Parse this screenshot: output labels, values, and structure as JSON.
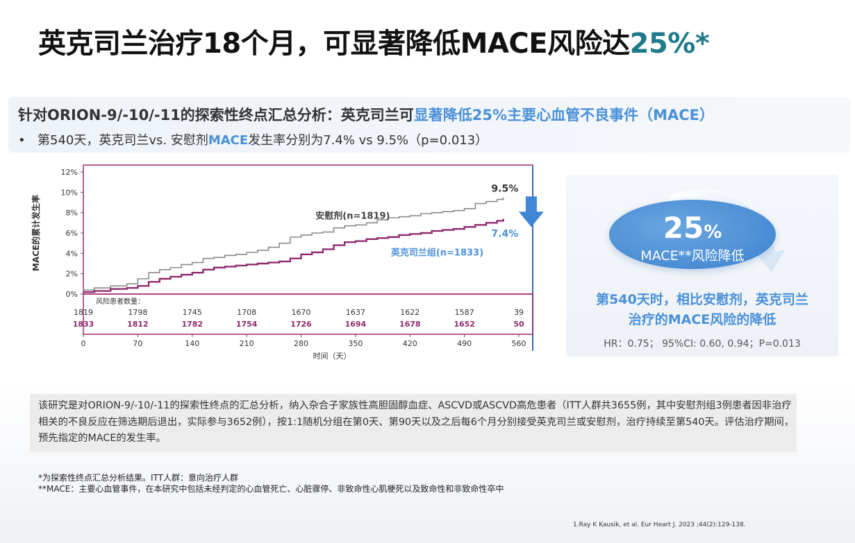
{
  "title": {
    "main": "英克司兰治疗18个月，可显著降低MACE风险达",
    "highlight": "25%*"
  },
  "subtitle": {
    "prefix": "针对ORION-9/-10/-11的探索性终点汇总分析：英克司兰可",
    "highlight": "显著降低25%主要心血管不良事件（MACE）"
  },
  "bullet": {
    "marker": "•",
    "prefix": "第540天，英克司兰vs. 安慰剂",
    "highlight": "MACE",
    "suffix": "发生率分别为7.4% vs 9.5%（p=0.013）"
  },
  "chart_data": {
    "type": "line",
    "xlabel": "时间（天）",
    "ylabel": "MACE的累计发生率",
    "xlim": [
      0,
      560
    ],
    "ylim": [
      0,
      12
    ],
    "x_ticks": [
      0,
      70,
      140,
      210,
      280,
      350,
      420,
      490,
      560
    ],
    "y_ticks": [
      "0%",
      "2%",
      "4%",
      "6%",
      "8%",
      "10%",
      "12%"
    ],
    "series": [
      {
        "name": "安慰剂(n=1819)",
        "color": "#8a8a8a",
        "x": [
          0,
          14,
          35,
          56,
          70,
          84,
          98,
          112,
          126,
          140,
          154,
          168,
          182,
          196,
          210,
          224,
          238,
          252,
          266,
          280,
          294,
          308,
          322,
          336,
          350,
          364,
          378,
          392,
          406,
          420,
          434,
          448,
          462,
          476,
          490,
          504,
          518,
          532,
          540
        ],
        "y": [
          0.4,
          0.6,
          0.8,
          1.0,
          1.5,
          2.1,
          2.4,
          2.6,
          2.9,
          3.1,
          3.5,
          3.6,
          3.8,
          3.9,
          4.1,
          4.3,
          4.6,
          5.0,
          5.6,
          5.8,
          6.0,
          6.1,
          6.5,
          6.7,
          6.8,
          7.0,
          7.3,
          7.5,
          7.6,
          7.7,
          7.9,
          8.0,
          8.1,
          8.2,
          8.4,
          8.9,
          9.1,
          9.3,
          9.5
        ]
      },
      {
        "name": "英克司兰组(n=1833)",
        "color": "#8e2a6e",
        "x": [
          0,
          14,
          35,
          56,
          70,
          84,
          98,
          112,
          126,
          140,
          154,
          168,
          182,
          196,
          210,
          224,
          238,
          252,
          266,
          280,
          294,
          308,
          322,
          336,
          350,
          364,
          378,
          392,
          406,
          420,
          434,
          448,
          462,
          476,
          490,
          504,
          518,
          532,
          540
        ],
        "y": [
          0.2,
          0.3,
          0.5,
          0.6,
          0.8,
          1.2,
          1.5,
          1.7,
          1.9,
          2.1,
          2.4,
          2.6,
          2.7,
          2.8,
          2.9,
          3.0,
          3.1,
          3.2,
          3.5,
          3.9,
          4.1,
          4.4,
          4.8,
          5.1,
          5.2,
          5.4,
          5.5,
          5.6,
          5.8,
          5.9,
          6.0,
          6.2,
          6.3,
          6.4,
          6.6,
          6.8,
          7.0,
          7.2,
          7.4
        ]
      }
    ],
    "end_labels": {
      "placebo": "9.5%",
      "inclisiran": "7.4%"
    },
    "risk_table": {
      "title": "风险患者数量：",
      "placebo": [
        "1819",
        "1798",
        "1745",
        "1708",
        "1670",
        "1637",
        "1622",
        "1587",
        "39"
      ],
      "inclisiran": [
        "1833",
        "1812",
        "1782",
        "1754",
        "1726",
        "1694",
        "1678",
        "1652",
        "50"
      ]
    },
    "colors": {
      "frame": "#a2266f",
      "right_border": "#3a66b8",
      "placebo": "#8a8a8a",
      "inclisiran": "#8e2a6e",
      "label_blue": "#4a90d9",
      "arrow": "#3f86d4"
    }
  },
  "right_panel": {
    "big_value": "25",
    "big_unit": "%",
    "big_label": "MACE**风险降低",
    "line1": "第540天时，相比安慰剂，英克司兰",
    "line2": "治疗的MACE风险的降低",
    "stats": "HR：0.75；  95%CI: 0.60, 0.94；P=0.013"
  },
  "note": "该研究是对ORION-9/-10/-11的探索性终点的汇总分析，纳入杂合子家族性高胆固醇血症、ASCVD或ASCVD高危患者（ITT人群共3655例，其中安慰剂组3例患者因非治疗相关的不良反应在筛选期后退出，实际参与3652例），按1:1随机分组在第0天、第90天以及之后每6个月分别接受英克司兰或安慰剂，治疗持续至第540天。评估治疗期间，预先指定的MACE的发生率。",
  "footnotes": [
    "*为探索性终点汇总分析结果。ITT人群：意向治疗人群",
    "**MACE：主要心血管事件，在本研究中包括未经判定的心血管死亡、心脏骤停、非致命性心肌梗死以及致命性和非致命性卒中"
  ],
  "reference": "1.Ray K Kausik, et al. Eur Heart J. 2023 ;44(2):129-138."
}
